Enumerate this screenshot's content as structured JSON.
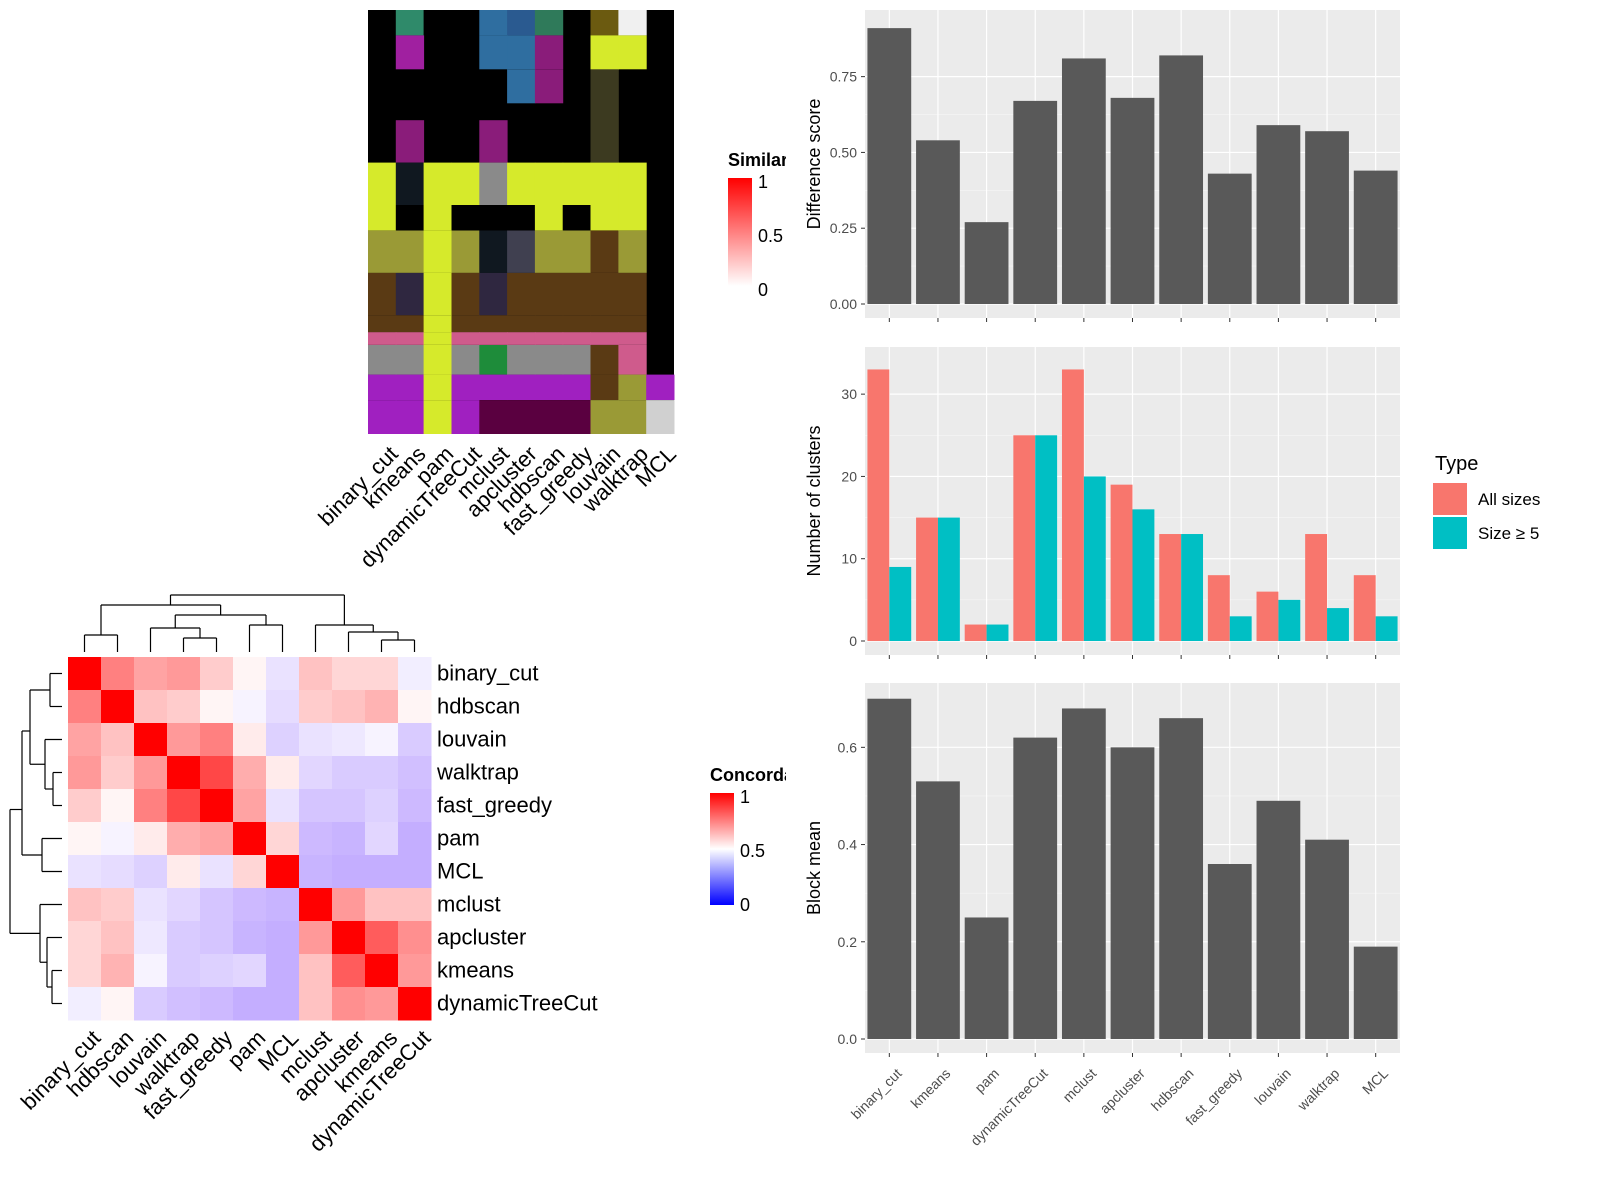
{
  "methods_top": [
    "binary_cut",
    "kmeans",
    "pam",
    "dynamicTreeCut",
    "mclust",
    "apcluster",
    "hdbscan",
    "fast_greedy",
    "louvain",
    "walktrap",
    "MCL"
  ],
  "similarity_legend": {
    "title": "Similarity",
    "ticks": [
      "1",
      "0.5",
      "0"
    ]
  },
  "concordance_legend": {
    "title": "Concordance",
    "ticks": [
      "1",
      "0.5",
      "0"
    ]
  },
  "colors": {
    "panel_bg": "#ebebeb",
    "bar_dark": "#595959",
    "all_sizes": "#f8766d",
    "size_ge5": "#00bfc4",
    "hm_high": "#ff0000",
    "hm_mid": "#ffffff",
    "hm_low": "#0000ff"
  },
  "chart_data": [
    {
      "type": "heatmap",
      "name": "concordance",
      "rows": [
        "binary_cut",
        "hdbscan",
        "louvain",
        "walktrap",
        "fast_greedy",
        "pam",
        "MCL",
        "mclust",
        "apcluster",
        "kmeans",
        "dynamicTreeCut"
      ],
      "cols": [
        "binary_cut",
        "hdbscan",
        "louvain",
        "walktrap",
        "fast_greedy",
        "pam",
        "MCL",
        "mclust",
        "apcluster",
        "kmeans",
        "dynamicTreeCut"
      ],
      "values": [
        [
          1.0,
          0.75,
          0.68,
          0.7,
          0.6,
          0.52,
          0.4,
          0.62,
          0.58,
          0.58,
          0.44
        ],
        [
          0.75,
          1.0,
          0.62,
          0.6,
          0.52,
          0.46,
          0.38,
          0.6,
          0.62,
          0.65,
          0.52
        ],
        [
          0.68,
          0.62,
          1.0,
          0.7,
          0.75,
          0.54,
          0.34,
          0.4,
          0.42,
          0.46,
          0.32
        ],
        [
          0.7,
          0.6,
          0.7,
          1.0,
          0.86,
          0.66,
          0.54,
          0.36,
          0.32,
          0.32,
          0.28
        ],
        [
          0.6,
          0.52,
          0.75,
          0.86,
          1.0,
          0.68,
          0.4,
          0.3,
          0.3,
          0.34,
          0.26
        ],
        [
          0.52,
          0.46,
          0.54,
          0.66,
          0.68,
          1.0,
          0.58,
          0.26,
          0.24,
          0.36,
          0.22
        ],
        [
          0.4,
          0.38,
          0.34,
          0.54,
          0.4,
          0.58,
          1.0,
          0.24,
          0.22,
          0.22,
          0.22
        ],
        [
          0.62,
          0.6,
          0.4,
          0.36,
          0.3,
          0.26,
          0.24,
          1.0,
          0.7,
          0.62,
          0.62
        ],
        [
          0.58,
          0.62,
          0.42,
          0.32,
          0.3,
          0.24,
          0.22,
          0.7,
          1.0,
          0.82,
          0.72
        ],
        [
          0.58,
          0.65,
          0.46,
          0.32,
          0.34,
          0.36,
          0.22,
          0.62,
          0.82,
          1.0,
          0.7
        ],
        [
          0.44,
          0.52,
          0.32,
          0.28,
          0.26,
          0.22,
          0.22,
          0.62,
          0.72,
          0.7,
          1.0
        ]
      ],
      "range": [
        0,
        1
      ],
      "legend_title": "Concordance"
    },
    {
      "type": "bar",
      "name": "difference-score",
      "categories": [
        "binary_cut",
        "kmeans",
        "pam",
        "dynamicTreeCut",
        "mclust",
        "apcluster",
        "hdbscan",
        "fast_greedy",
        "louvain",
        "walktrap",
        "MCL"
      ],
      "values": [
        0.91,
        0.54,
        0.27,
        0.67,
        0.81,
        0.68,
        0.82,
        0.43,
        0.59,
        0.57,
        0.44
      ],
      "ylabel": "Difference score",
      "ylim": [
        0,
        0.95
      ],
      "yticks": [
        0.0,
        0.25,
        0.5,
        0.75
      ],
      "ytick_labels": [
        "0.00",
        "0.25",
        "0.50",
        "0.75"
      ]
    },
    {
      "type": "bar",
      "name": "number-of-clusters",
      "categories": [
        "binary_cut",
        "kmeans",
        "pam",
        "dynamicTreeCut",
        "mclust",
        "apcluster",
        "hdbscan",
        "fast_greedy",
        "louvain",
        "walktrap",
        "MCL"
      ],
      "series": [
        {
          "name": "All sizes",
          "values": [
            33,
            15,
            2,
            25,
            33,
            19,
            13,
            8,
            6,
            13,
            8
          ]
        },
        {
          "name": "Size ≥ 5",
          "values": [
            9,
            15,
            2,
            25,
            20,
            16,
            13,
            3,
            5,
            4,
            3
          ]
        }
      ],
      "ylabel": "Number of clusters",
      "ylim": [
        0,
        35
      ],
      "yticks": [
        0,
        10,
        20,
        30
      ],
      "ytick_labels": [
        "0",
        "10",
        "20",
        "30"
      ],
      "legend_title": "Type",
      "legend_position": "right"
    },
    {
      "type": "bar",
      "name": "block-mean",
      "categories": [
        "binary_cut",
        "kmeans",
        "pam",
        "dynamicTreeCut",
        "mclust",
        "apcluster",
        "hdbscan",
        "fast_greedy",
        "louvain",
        "walktrap",
        "MCL"
      ],
      "values": [
        0.7,
        0.53,
        0.25,
        0.62,
        0.68,
        0.6,
        0.66,
        0.36,
        0.49,
        0.41,
        0.19
      ],
      "ylabel": "Block mean",
      "ylim": [
        0,
        0.72
      ],
      "yticks": [
        0.0,
        0.2,
        0.4,
        0.6
      ],
      "ytick_labels": [
        "0.0",
        "0.2",
        "0.4",
        "0.6"
      ]
    }
  ]
}
